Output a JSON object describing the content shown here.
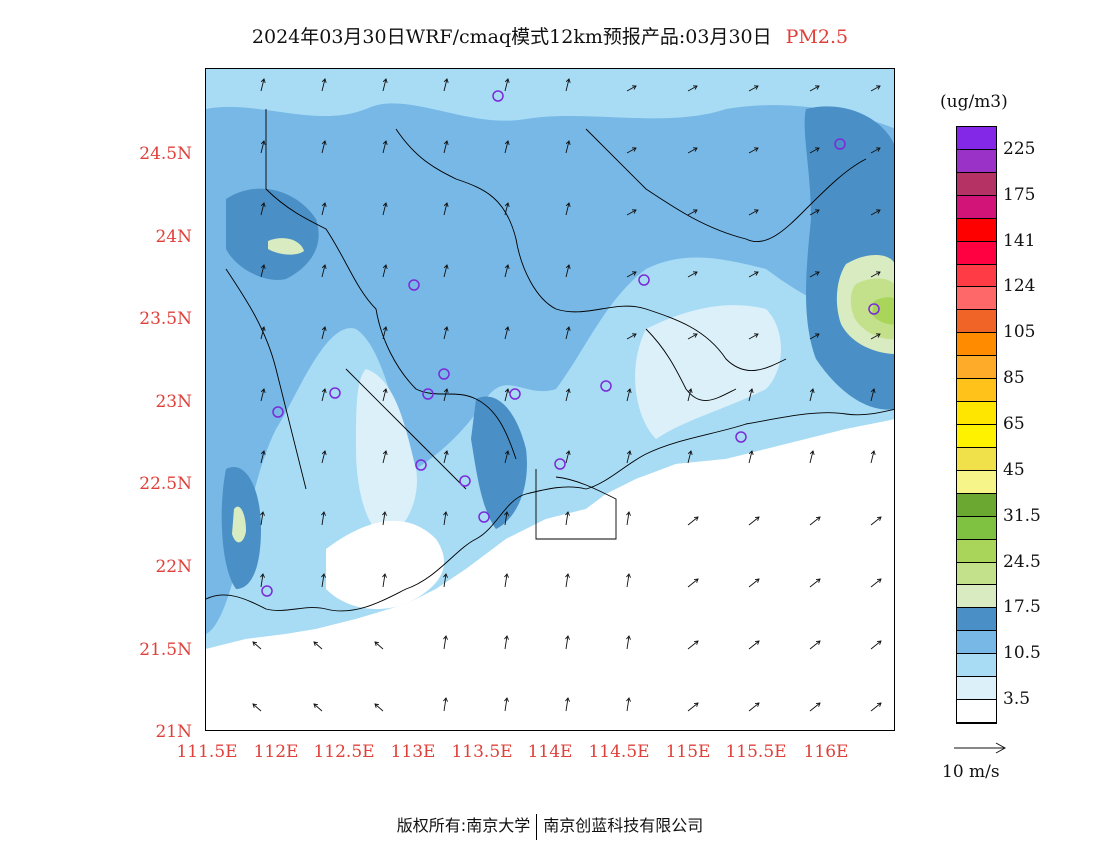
{
  "title": {
    "main": "2024年03月30日WRF/cmaq模式12km预报产品:03月30日",
    "variable": "PM2.5"
  },
  "axes": {
    "lat_ticks": [
      "24.5N",
      "24N",
      "23.5N",
      "23N",
      "22.5N",
      "22N",
      "21.5N",
      "21N"
    ],
    "lon_ticks": [
      "111.5E",
      "112E",
      "112.5E",
      "113E",
      "113.5E",
      "114E",
      "114.5E",
      "115E",
      "115.5E",
      "116E"
    ]
  },
  "colorbar": {
    "unit": "(ug/m3)",
    "colors": [
      "#ffffff",
      "#dcf0fa",
      "#a8dcf5",
      "#78b8e6",
      "#4a90c6",
      "#d9ebc0",
      "#c3e08a",
      "#a8d55a",
      "#7fc241",
      "#6aa832",
      "#f5f58a",
      "#f0e04a",
      "#fff200",
      "#ffe600",
      "#ffc21a",
      "#ffab2a",
      "#ff8c00",
      "#f06428",
      "#ff6868",
      "#ff3c46",
      "#ff0040",
      "#ff0000",
      "#d21478",
      "#b43264",
      "#9b32c8",
      "#8228e6"
    ],
    "labels": [
      "3.5",
      "10.5",
      "17.5",
      "24.5",
      "31.5",
      "45",
      "65",
      "85",
      "105",
      "124",
      "141",
      "175",
      "225"
    ]
  },
  "wind_reference": {
    "label": "10 m/s"
  },
  "footer": {
    "copyright_prefix": "版权所有:",
    "org1": "南京大学",
    "org2": "南京创蓝科技有限公司"
  }
}
